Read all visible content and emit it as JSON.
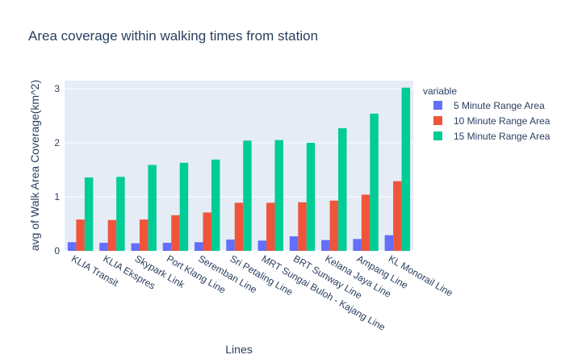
{
  "chart_data": {
    "type": "bar",
    "title": "Area coverage within walking times from station",
    "xlabel": "Lines",
    "ylabel": "avg of Walk Area Coverage(km^2)",
    "ylim": [
      0,
      3.15
    ],
    "yticks": [
      0,
      1,
      2,
      3
    ],
    "grid": true,
    "legend_title": "variable",
    "legend_position": "right",
    "categories": [
      "KLIA Transit",
      "KLIA Ekspres",
      "Skypark Link",
      "Port Klang Line",
      "Seremban Line",
      "Sri Petaling Line",
      "MRT Sungai Buloh - Kajang Line",
      "BRT Sunway Line",
      "Kelana Jaya Line",
      "Ampang Line",
      "KL Monorail Line"
    ],
    "series": [
      {
        "name": "5 Minute Range Area",
        "color": "#636efa",
        "values": [
          0.16,
          0.15,
          0.14,
          0.15,
          0.16,
          0.21,
          0.19,
          0.27,
          0.2,
          0.22,
          0.29
        ]
      },
      {
        "name": "10 Minute Range Area",
        "color": "#ef553b",
        "values": [
          0.58,
          0.57,
          0.58,
          0.66,
          0.71,
          0.89,
          0.89,
          0.9,
          0.93,
          1.04,
          1.29
        ]
      },
      {
        "name": "15 Minute Range Area",
        "color": "#00cc96",
        "values": [
          1.36,
          1.37,
          1.59,
          1.63,
          1.69,
          2.04,
          2.05,
          2.0,
          2.27,
          2.54,
          3.02
        ]
      }
    ]
  }
}
